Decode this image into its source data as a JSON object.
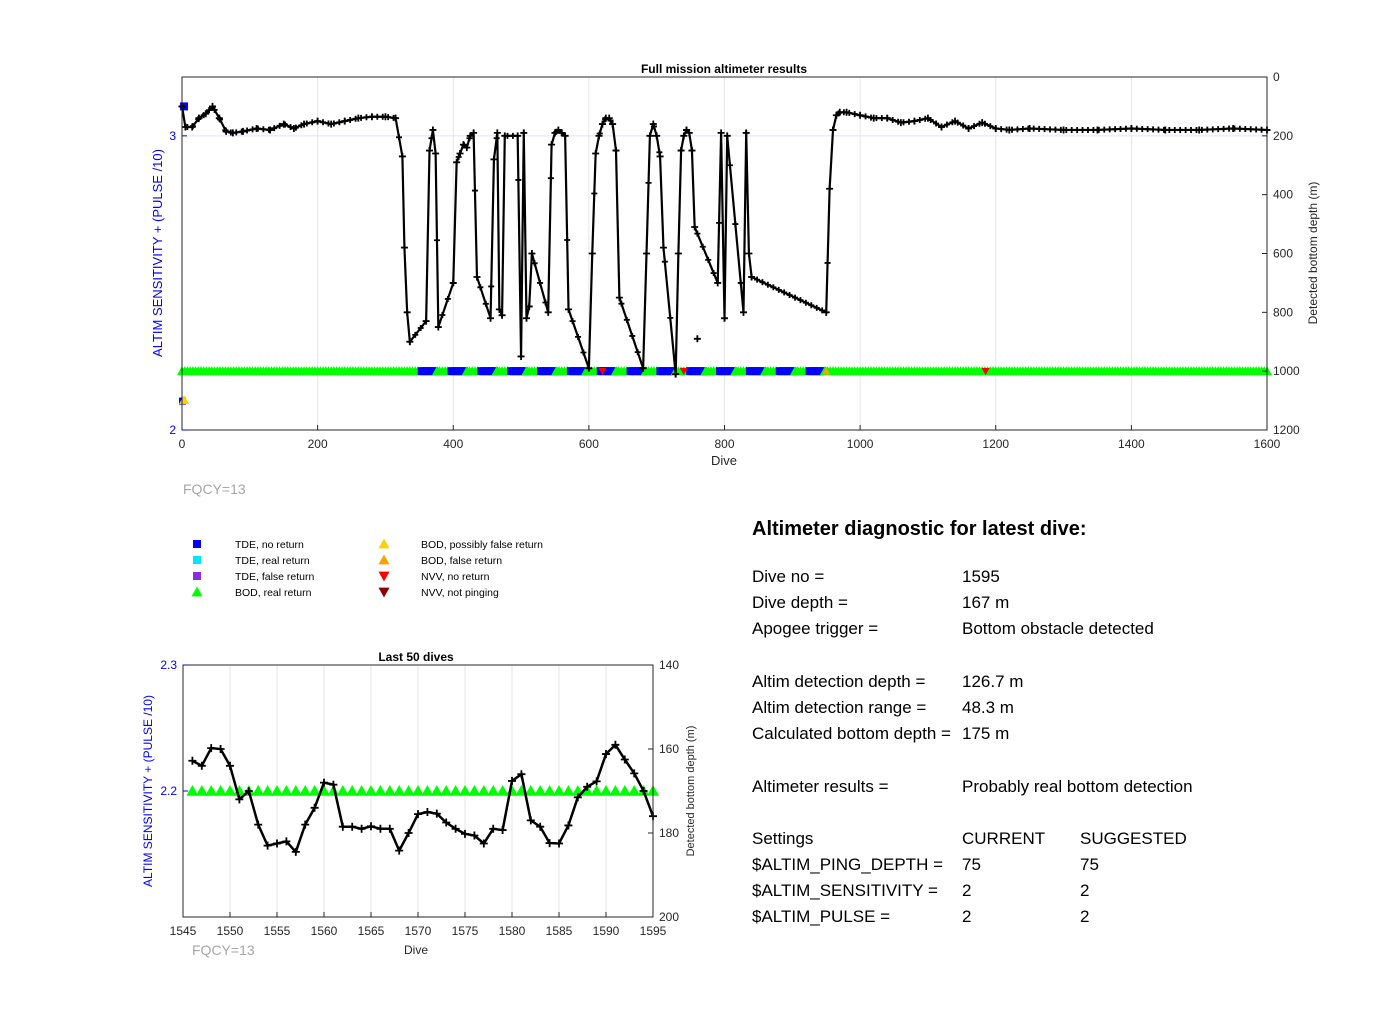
{
  "colors": {
    "left_axis": "#0000ff",
    "right_axis": "#000000",
    "grid": "#e6e6e6",
    "depth_line": "#000000",
    "tde_no_return": "#0000ff",
    "tde_real_return": "#00e5ff",
    "tde_false_return": "#8b2be2",
    "bod_real_return": "#00ff00",
    "bod_possibly_false": "#ffd000",
    "bod_false_return": "#ff9f00",
    "nvv_no_return": "#ff0000",
    "nvv_not_pinging": "#8b0000",
    "fqcy_text": "#a6a6a6"
  },
  "main_chart": {
    "title": "Full mission altimeter results",
    "xlabel": "Dive",
    "ylabel_left": "ALTIM SENSITIVITY + (PULSE /10)",
    "ylabel_right": "Detected bottom depth (m)",
    "xlim": [
      0,
      1600
    ],
    "xticks": [
      "0",
      "200",
      "400",
      "600",
      "800",
      "1000",
      "1200",
      "1400",
      "1600"
    ],
    "ylim_left": [
      2,
      3.2
    ],
    "yticks_left": [
      "2",
      "3"
    ],
    "ylim_right": [
      0,
      1200
    ],
    "yticks_right": [
      "0",
      "200",
      "400",
      "600",
      "800",
      "1000",
      "1200"
    ],
    "grid": true,
    "annotation": "FQCY=13"
  },
  "zoom_chart": {
    "title": "Last 50 dives",
    "xlabel": "Dive",
    "ylabel_left": "ALTIM SENSITIVITY + (PULSE /10)",
    "ylabel_right": "Detected bottom depth (m)",
    "xlim": [
      1545,
      1595
    ],
    "xticks": [
      "1545",
      "1550",
      "1555",
      "1560",
      "1565",
      "1570",
      "1575",
      "1580",
      "1585",
      "1590",
      "1595"
    ],
    "ylim_left": [
      2.1,
      2.3
    ],
    "yticks_left": [
      "2.2",
      "2.3"
    ],
    "ylim_right": [
      140,
      200
    ],
    "yticks_right": [
      "140",
      "160",
      "180",
      "200"
    ],
    "grid": true,
    "annotation": "FQCY=13"
  },
  "legend": {
    "items": [
      {
        "label": "TDE, no return",
        "marker": "square",
        "color": "#0000ff"
      },
      {
        "label": "TDE, real return",
        "marker": "square",
        "color": "#00e5ff"
      },
      {
        "label": "TDE, false return",
        "marker": "square",
        "color": "#8b2be2"
      },
      {
        "label": "BOD, real return",
        "marker": "triangle-up",
        "color": "#00ff00"
      },
      {
        "label": "BOD, possibly false return",
        "marker": "triangle-up",
        "color": "#ffd000"
      },
      {
        "label": "BOD, false return",
        "marker": "triangle-up",
        "color": "#ff9f00"
      },
      {
        "label": "NVV, no return",
        "marker": "triangle-down",
        "color": "#ff0000"
      },
      {
        "label": "NVV, not pinging",
        "marker": "triangle-down",
        "color": "#8b0000"
      }
    ]
  },
  "chart_data": [
    {
      "type": "scatter",
      "title": "Full mission altimeter results",
      "xlabel": "Dive",
      "ylabel": "Detected bottom depth (m)",
      "xlim": [
        0,
        1600
      ],
      "ylim": [
        1200,
        0
      ],
      "grid": true,
      "series": [
        {
          "x": [
            0,
            5,
            15,
            25,
            35,
            45,
            55,
            65,
            75,
            90,
            110,
            130,
            150,
            165,
            180,
            200,
            220,
            240,
            260,
            280,
            300,
            315,
            325,
            328,
            332,
            336,
            360,
            365,
            370,
            374,
            378,
            400,
            405,
            410,
            415,
            420,
            425,
            430,
            435,
            455,
            460,
            465,
            468,
            472,
            476,
            495,
            500,
            504,
            508,
            512,
            516,
            540,
            545,
            550,
            555,
            560,
            565,
            570,
            600,
            605,
            610,
            615,
            620,
            625,
            630,
            635,
            640,
            645,
            680,
            685,
            690,
            695,
            700,
            705,
            710,
            728,
            732,
            736,
            740,
            744,
            748,
            752,
            756,
            790,
            795,
            800,
            804,
            828,
            832,
            836,
            840,
            950,
            955,
            960,
            965,
            970,
            980,
            1000,
            1020,
            1040,
            1060,
            1080,
            1100,
            1120,
            1140,
            1160,
            1180,
            1200,
            1220,
            1250,
            1300,
            1350,
            1400,
            1450,
            1500,
            1550,
            1600
          ],
          "y": [
            100,
            170,
            170,
            140,
            125,
            100,
            140,
            185,
            190,
            185,
            175,
            180,
            160,
            175,
            160,
            150,
            160,
            150,
            140,
            135,
            135,
            140,
            270,
            580,
            800,
            900,
            830,
            250,
            180,
            260,
            850,
            700,
            290,
            260,
            230,
            240,
            200,
            190,
            680,
            820,
            280,
            190,
            790,
            810,
            200,
            200,
            950,
            190,
            820,
            780,
            600,
            800,
            230,
            190,
            180,
            190,
            200,
            790,
            990,
            600,
            260,
            200,
            160,
            140,
            140,
            160,
            250,
            750,
            990,
            600,
            200,
            160,
            200,
            270,
            580,
            1010,
            600,
            250,
            200,
            180,
            190,
            250,
            510,
            700,
            190,
            820,
            200,
            800,
            190,
            600,
            680,
            800,
            380,
            180,
            130,
            120,
            120,
            130,
            140,
            140,
            155,
            150,
            140,
            170,
            150,
            175,
            155,
            175,
            180,
            175,
            180,
            180,
            175,
            180,
            180,
            175,
            180
          ]
        },
        {
          "name": "BOD, real return",
          "x": [
            0,
            1600
          ],
          "y": [
            1000,
            1000
          ]
        },
        {
          "name": "TDE, no return",
          "x": [
            330,
            900
          ],
          "y": [
            1000,
            1000
          ]
        }
      ]
    },
    {
      "type": "line",
      "title": "Last 50 dives",
      "xlabel": "Dive",
      "ylabel": "Detected bottom depth (m)",
      "xlim": [
        1545,
        1595
      ],
      "ylim": [
        200,
        140
      ],
      "grid": true,
      "series": [
        {
          "x": [
            1546,
            1547,
            1548,
            1549,
            1550,
            1551,
            1552,
            1553,
            1554,
            1555,
            1556,
            1557,
            1558,
            1559,
            1560,
            1561,
            1562,
            1563,
            1564,
            1565,
            1566,
            1567,
            1568,
            1569,
            1570,
            1571,
            1572,
            1573,
            1574,
            1575,
            1576,
            1577,
            1578,
            1579,
            1580,
            1581,
            1582,
            1583,
            1584,
            1585,
            1586,
            1587,
            1588,
            1589,
            1590,
            1591,
            1592,
            1593,
            1594,
            1595
          ],
          "y": [
            162.8,
            164,
            159.8,
            160,
            164,
            172,
            170,
            178,
            183,
            182.5,
            182,
            184.5,
            178,
            174,
            168,
            168.5,
            178.5,
            178.5,
            179,
            178.4,
            179,
            179,
            184.2,
            180,
            175.5,
            175,
            175.4,
            177.5,
            179,
            180.2,
            180.6,
            182.5,
            179,
            179.3,
            167.6,
            166,
            177,
            178.5,
            182.4,
            182.5,
            178.2,
            171.5,
            169,
            167.7,
            161.2,
            159,
            162.5,
            165.8,
            170,
            176
          ]
        },
        {
          "name": "BOD, real return",
          "x": [
            1546,
            1547,
            1548,
            1549,
            1550,
            1551,
            1552,
            1553,
            1554,
            1555,
            1556,
            1557,
            1558,
            1559,
            1560,
            1561,
            1562,
            1563,
            1564,
            1565,
            1566,
            1567,
            1568,
            1569,
            1570,
            1571,
            1572,
            1573,
            1574,
            1575,
            1576,
            1577,
            1578,
            1579,
            1580,
            1581,
            1582,
            1583,
            1584,
            1585,
            1586,
            1587,
            1588,
            1589,
            1590,
            1591,
            1592,
            1593,
            1594,
            1595
          ],
          "y": [
            170,
            170,
            170,
            170,
            170,
            170,
            170,
            170,
            170,
            170,
            170,
            170,
            170,
            170,
            170,
            170,
            170,
            170,
            170,
            170,
            170,
            170,
            170,
            170,
            170,
            170,
            170,
            170,
            170,
            170,
            170,
            170,
            170,
            170,
            170,
            170,
            170,
            170,
            170,
            170,
            170,
            170,
            170,
            170,
            170,
            170,
            170,
            170,
            170,
            170
          ]
        }
      ]
    }
  ],
  "diagnostic": {
    "title": "Altimeter diagnostic for latest dive:",
    "dive_no_label": "Dive no =",
    "dive_no": "1595",
    "dive_depth_label": "Dive depth =",
    "dive_depth": "167 m",
    "apogee_label": "Apogee trigger =",
    "apogee": "Bottom obstacle detected",
    "altim_det_depth_label": "Altim detection depth =",
    "altim_det_depth": "126.7 m",
    "altim_det_range_label": "Altim detection range =",
    "altim_det_range": "48.3 m",
    "calc_bottom_label": "Calculated bottom depth =",
    "calc_bottom": "175 m",
    "results_label": "Altimeter results =",
    "results": "Probably real bottom detection",
    "settings_label": "Settings",
    "current_label": "CURRENT",
    "suggested_label": "SUGGESTED",
    "ping_depth_label": "$ALTIM_PING_DEPTH =",
    "ping_depth_current": "75",
    "ping_depth_suggested": "75",
    "sensitivity_label": "$ALTIM_SENSITIVITY =",
    "sensitivity_current": "2",
    "sensitivity_suggested": "2",
    "pulse_label": "$ALTIM_PULSE =",
    "pulse_current": "2",
    "pulse_suggested": "2"
  }
}
